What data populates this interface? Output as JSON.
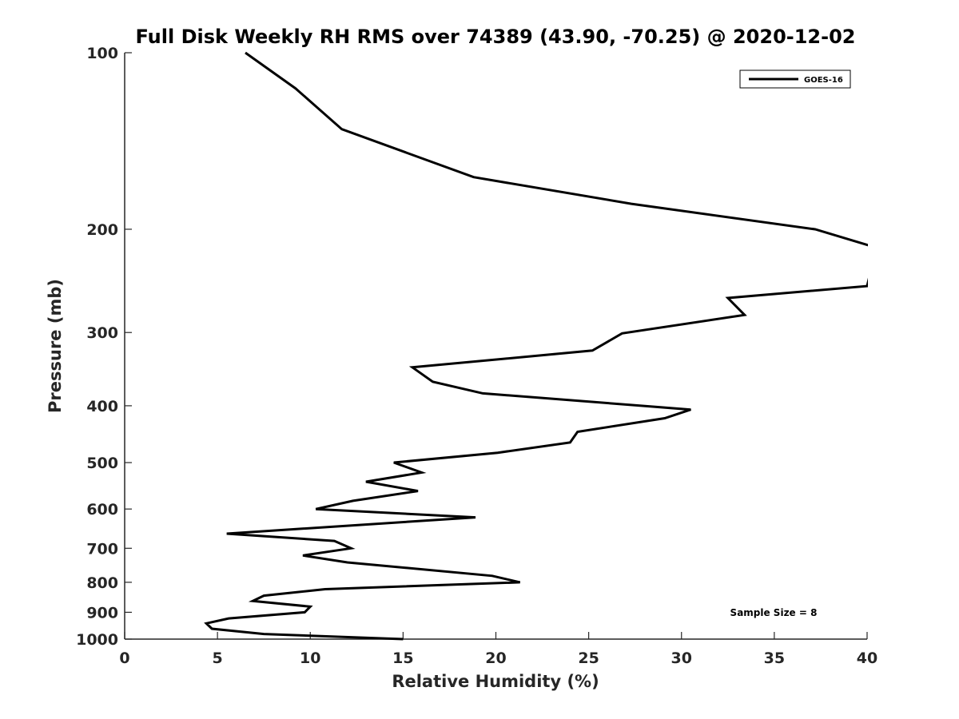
{
  "chart_data": {
    "type": "line",
    "title": "Full Disk Weekly RH RMS over 74389 (43.90, -70.25) @ 2020-12-02",
    "xlabel": "Relative Humidity (%)",
    "ylabel": "Pressure (mb)",
    "xlim": [
      0,
      40
    ],
    "ylim": [
      100,
      1000
    ],
    "y_scale": "log",
    "y_reversed": true,
    "grid": false,
    "x_ticks": [
      0,
      5,
      10,
      15,
      20,
      25,
      30,
      35,
      40
    ],
    "y_ticks": [
      100,
      200,
      300,
      400,
      500,
      600,
      700,
      800,
      900,
      1000
    ],
    "legend": {
      "position": "top-right",
      "entries": [
        "GOES-16"
      ]
    },
    "annotation": "Sample Size = 8",
    "series": [
      {
        "name": "GOES-16",
        "color": "#000000",
        "points": [
          [
            6.5,
            100
          ],
          [
            9.2,
            115
          ],
          [
            11.7,
            135
          ],
          [
            18.8,
            163
          ],
          [
            27.3,
            181
          ],
          [
            37.2,
            200
          ],
          [
            40.5,
            215
          ],
          [
            40.0,
            250
          ],
          [
            32.5,
            262
          ],
          [
            33.4,
            280
          ],
          [
            26.8,
            301
          ],
          [
            25.2,
            322
          ],
          [
            15.5,
            344
          ],
          [
            16.6,
            364
          ],
          [
            19.3,
            381
          ],
          [
            30.5,
            406
          ],
          [
            29.1,
            420
          ],
          [
            24.4,
            443
          ],
          [
            24.0,
            462
          ],
          [
            20.1,
            481
          ],
          [
            14.5,
            500
          ],
          [
            16.0,
            520
          ],
          [
            13.0,
            539
          ],
          [
            15.8,
            559
          ],
          [
            12.3,
            581
          ],
          [
            10.3,
            600
          ],
          [
            18.9,
            620
          ],
          [
            5.5,
            661
          ],
          [
            11.3,
            680
          ],
          [
            12.2,
            700
          ],
          [
            9.6,
            720
          ],
          [
            12.0,
            740
          ],
          [
            19.8,
            780
          ],
          [
            21.3,
            800
          ],
          [
            10.8,
            822
          ],
          [
            7.5,
            843
          ],
          [
            6.9,
            861
          ],
          [
            10.0,
            880
          ],
          [
            9.7,
            900
          ],
          [
            5.6,
            922
          ],
          [
            4.4,
            940
          ],
          [
            4.7,
            960
          ],
          [
            7.5,
            980
          ],
          [
            15.0,
            1000
          ]
        ]
      }
    ]
  }
}
